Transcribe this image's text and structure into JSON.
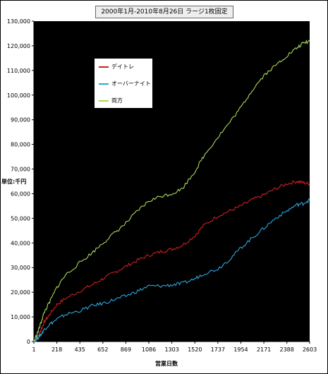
{
  "chart_data": {
    "type": "line",
    "title": "2000年1月-2010年8月26日  ラージ1枚固定",
    "ylabel": "単位:千円",
    "xlabel": "営業日数",
    "ylim": [
      0,
      130000
    ],
    "xlim": [
      1,
      2603
    ],
    "yticks": [
      0,
      10000,
      20000,
      30000,
      40000,
      50000,
      60000,
      70000,
      80000,
      90000,
      100000,
      110000,
      120000,
      130000
    ],
    "ytick_labels": [
      "0",
      "10,000",
      "20,000",
      "30,000",
      "40,000",
      "50,000",
      "60,000",
      "70,000",
      "80,000",
      "90,000",
      "100,000",
      "110,000",
      "120,000",
      "130,000"
    ],
    "xticks": [
      1,
      218,
      435,
      652,
      869,
      1086,
      1303,
      1520,
      1737,
      1954,
      2171,
      2388,
      2603
    ],
    "xtick_labels": [
      "1",
      "218",
      "435",
      "652",
      "869",
      "1086",
      "1303",
      "1520",
      "1737",
      "1954",
      "2171",
      "2388",
      "2603"
    ],
    "grid": false,
    "legend_position": "top-left",
    "plot_background": "#000000",
    "series": [
      {
        "name": "デイトレ",
        "color": "#cc1f1f",
        "x": [
          1,
          40,
          70,
          100,
          150,
          218,
          300,
          435,
          550,
          652,
          760,
          869,
          980,
          1086,
          1200,
          1303,
          1400,
          1520,
          1600,
          1737,
          1850,
          1954,
          2060,
          2171,
          2280,
          2388,
          2480,
          2540,
          2603
        ],
        "y": [
          0,
          2000,
          5000,
          8000,
          11000,
          15000,
          17500,
          20500,
          23000,
          25500,
          28000,
          30500,
          33000,
          35000,
          36500,
          37500,
          39000,
          43000,
          47000,
          51000,
          53000,
          55000,
          57500,
          59500,
          62000,
          64000,
          65000,
          64500,
          64000
        ]
      },
      {
        "name": "オーバーナイト",
        "color": "#2aa6e0",
        "x": [
          1,
          40,
          70,
          100,
          150,
          218,
          300,
          435,
          550,
          652,
          760,
          869,
          980,
          1086,
          1200,
          1303,
          1400,
          1520,
          1600,
          1737,
          1850,
          1954,
          2060,
          2171,
          2280,
          2388,
          2480,
          2540,
          2603
        ],
        "y": [
          0,
          1500,
          3000,
          5000,
          7000,
          9000,
          11000,
          12500,
          14500,
          15500,
          17000,
          18500,
          20500,
          22500,
          22500,
          23000,
          23500,
          25500,
          27500,
          29500,
          33500,
          38000,
          42000,
          46000,
          50000,
          53000,
          55500,
          56000,
          57500
        ]
      },
      {
        "name": "両方",
        "color": "#a8d85a",
        "x": [
          1,
          40,
          70,
          100,
          150,
          218,
          300,
          435,
          550,
          652,
          760,
          869,
          980,
          1086,
          1200,
          1303,
          1400,
          1520,
          1600,
          1737,
          1850,
          1954,
          2060,
          2171,
          2280,
          2388,
          2480,
          2540,
          2603
        ],
        "y": [
          0,
          4000,
          8000,
          12000,
          16000,
          22000,
          27000,
          32000,
          36000,
          40000,
          44000,
          48000,
          53000,
          57000,
          59000,
          60000,
          62000,
          69000,
          75000,
          83000,
          89000,
          95000,
          102000,
          108000,
          112000,
          116000,
          119000,
          121000,
          122000
        ]
      }
    ]
  }
}
